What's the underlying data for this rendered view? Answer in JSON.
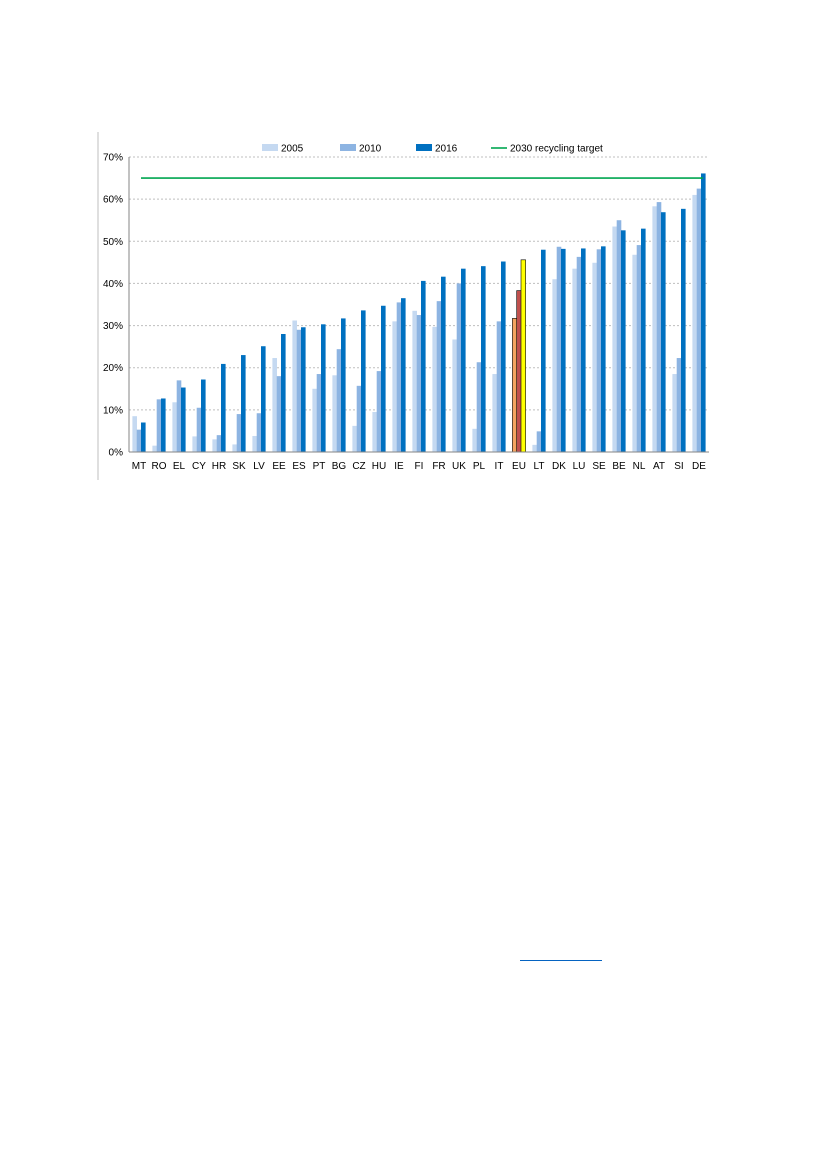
{
  "chart_data": {
    "type": "bar",
    "title": "",
    "xlabel": "",
    "ylabel": "",
    "ylim": [
      0,
      70
    ],
    "yticks": [
      0,
      10,
      20,
      30,
      40,
      50,
      60,
      70
    ],
    "ytick_labels": [
      "0%",
      "10%",
      "20%",
      "30%",
      "40%",
      "50%",
      "60%",
      "70%"
    ],
    "grid": true,
    "legend_position": "top",
    "categories": [
      "MT",
      "RO",
      "EL",
      "CY",
      "HR",
      "SK",
      "LV",
      "EE",
      "ES",
      "PT",
      "BG",
      "CZ",
      "HU",
      "IE",
      "FI",
      "FR",
      "UK",
      "PL",
      "IT",
      "EU",
      "LT",
      "DK",
      "LU",
      "SE",
      "BE",
      "NL",
      "AT",
      "SI",
      "DE"
    ],
    "series": [
      {
        "name": "2005",
        "color": "#C5D9F1",
        "values": [
          8.5,
          1.5,
          11.8,
          3.7,
          3,
          1.8,
          3.8,
          22.3,
          31.2,
          15,
          18.2,
          6.2,
          9.5,
          31,
          33.5,
          29.7,
          26.7,
          5.5,
          18.5,
          31.7,
          1.7,
          41,
          43.5,
          44.9,
          53.5,
          46.8,
          58.3,
          18.5,
          61
        ]
      },
      {
        "name": "2010",
        "color": "#8DB4E2",
        "values": [
          5.3,
          12.5,
          17,
          10.5,
          4,
          9,
          9.2,
          18,
          29,
          18.5,
          24.4,
          15.7,
          19.2,
          35.5,
          32.5,
          35.8,
          40,
          21.3,
          31,
          38.3,
          4.9,
          48.7,
          46.3,
          48.1,
          55,
          49.1,
          59.3,
          22.3,
          62.5
        ]
      },
      {
        "name": "2016",
        "color": "#0070C0",
        "values": [
          7,
          12.7,
          15.3,
          17.2,
          20.9,
          23,
          25.1,
          28,
          29.6,
          30.3,
          31.7,
          33.6,
          34.7,
          36.5,
          40.6,
          41.6,
          43.5,
          44.1,
          45.2,
          45.6,
          48,
          48.2,
          48.3,
          48.8,
          52.6,
          53,
          56.9,
          57.7,
          66.1
        ]
      }
    ],
    "highlight": {
      "category": "EU",
      "colors": {
        "2005": "#F4A460",
        "2010": "#C0504D",
        "2016": "#FFFF00"
      }
    },
    "target_line": {
      "name": "2030 recycling target",
      "value": 65,
      "color": "#00A651"
    }
  },
  "footnote": {
    "link_text": ""
  }
}
